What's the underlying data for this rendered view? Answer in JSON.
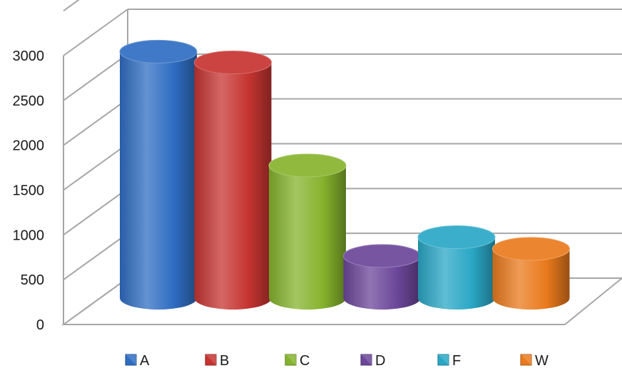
{
  "chart_data": {
    "type": "bar",
    "style": "3d-cylinder",
    "categories": [
      "A",
      "B",
      "C",
      "D",
      "F",
      "W"
    ],
    "values": [
      2750,
      2630,
      1480,
      470,
      680,
      550
    ],
    "colors": [
      "#2f6dc2",
      "#c63431",
      "#86b32d",
      "#6b4699",
      "#2aa7c6",
      "#ea7a1d"
    ],
    "ylim": [
      0,
      3000
    ],
    "yticks": [
      0,
      500,
      1000,
      1500,
      2000,
      2500,
      3000
    ],
    "grid": true,
    "legend": {
      "position": "bottom",
      "entries": [
        "A",
        "B",
        "C",
        "D",
        "F",
        "W"
      ]
    }
  }
}
